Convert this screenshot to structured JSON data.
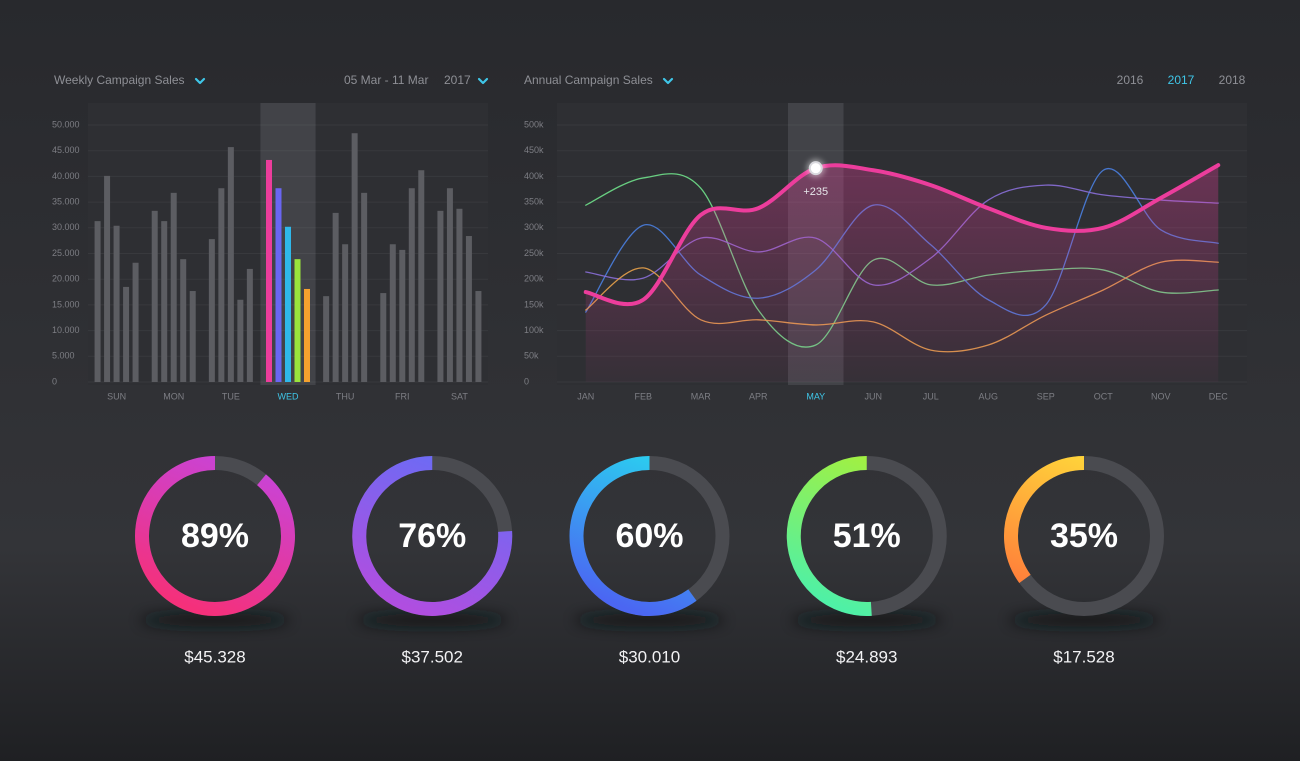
{
  "chart_data": [
    {
      "type": "bar",
      "title": "Weekly Campaign Sales",
      "date_range": "05 Mar - 11 Mar",
      "year": "2017",
      "categories": [
        "SUN",
        "MON",
        "TUE",
        "WED",
        "THU",
        "FRI",
        "SAT"
      ],
      "selected": 3,
      "ylim": [
        0,
        50000
      ],
      "yticks": [
        0,
        {
          "value": 5000,
          "label": "5.000"
        },
        {
          "value": 10000,
          "label": "10.000"
        },
        {
          "value": 15000,
          "label": "15.000"
        },
        {
          "value": 20000,
          "label": "20.000"
        },
        {
          "value": 25000,
          "label": "25.000"
        },
        {
          "value": 30000,
          "label": "30.000"
        },
        {
          "value": 35000,
          "label": "35.000"
        },
        {
          "value": 40000,
          "label": "40.000"
        },
        {
          "value": 45000,
          "label": "45.000"
        },
        {
          "value": 50000,
          "label": "50.000"
        }
      ],
      "grid": true,
      "series": [
        {
          "color": "#5c5d62",
          "highlight_color": "#ec3d9c",
          "values": [
            31300,
            33300,
            27800,
            43200,
            16700,
            17300,
            33300
          ]
        },
        {
          "color": "#5c5d62",
          "highlight_color": "#6a66f2",
          "values": [
            40100,
            31300,
            37700,
            37700,
            32900,
            26800,
            37700
          ]
        },
        {
          "color": "#5c5d62",
          "highlight_color": "#2fb8ea",
          "values": [
            30400,
            36800,
            45700,
            30200,
            26800,
            25700,
            33700
          ]
        },
        {
          "color": "#5c5d62",
          "highlight_color": "#9be43c",
          "values": [
            18500,
            23900,
            16000,
            23900,
            48400,
            37700,
            28400
          ]
        },
        {
          "color": "#5c5d62",
          "highlight_color": "#f5a12e",
          "values": [
            23200,
            17700,
            22000,
            18100,
            36800,
            41200,
            17700
          ]
        }
      ]
    },
    {
      "type": "line",
      "title": "Annual Campaign Sales",
      "years": [
        "2016",
        "2017",
        "2018"
      ],
      "selected_year": 1,
      "categories": [
        "JAN",
        "FEB",
        "MAR",
        "APR",
        "MAY",
        "JUN",
        "JUL",
        "AUG",
        "SEP",
        "OCT",
        "NOV",
        "DEC"
      ],
      "selected": 4,
      "ylim": [
        0,
        500000
      ],
      "yticks": [
        0,
        {
          "value": 50000,
          "label": "50k"
        },
        {
          "value": 100000,
          "label": "100k"
        },
        {
          "value": 150000,
          "label": "150k"
        },
        {
          "value": 200000,
          "label": "200k"
        },
        {
          "value": 250000,
          "label": "250k"
        },
        {
          "value": 300000,
          "label": "300k"
        },
        {
          "value": 350000,
          "label": "350k"
        },
        {
          "value": 400000,
          "label": "400k"
        },
        {
          "value": 450000,
          "label": "450k"
        },
        {
          "value": 500000,
          "label": "500k"
        }
      ],
      "grid": true,
      "annotation": "+235",
      "series": [
        {
          "color": "#ec3d9c",
          "area": true,
          "values": [
            175000,
            160000,
            325000,
            338000,
            416000,
            412000,
            383000,
            338000,
            300000,
            300000,
            358000,
            422000
          ]
        },
        {
          "color": "#6fe08a",
          "values": [
            344000,
            397000,
            377000,
            140000,
            72000,
            237000,
            189000,
            208000,
            218000,
            218000,
            175000,
            179000
          ]
        },
        {
          "color": "#4a7fe0",
          "values": [
            136000,
            305000,
            208000,
            163000,
            218000,
            344000,
            267000,
            160000,
            150000,
            412000,
            296000,
            270000
          ]
        },
        {
          "color": "#8a6fd8",
          "values": [
            214000,
            202000,
            280000,
            253000,
            280000,
            189000,
            241000,
            354000,
            383000,
            364000,
            354000,
            348000
          ]
        },
        {
          "color": "#e8a24a",
          "values": [
            140000,
            222000,
            121000,
            121000,
            111000,
            117000,
            62000,
            72000,
            130000,
            179000,
            233000,
            233000
          ]
        }
      ]
    },
    {
      "type": "gauge",
      "values": [
        89,
        76,
        60,
        51,
        35
      ],
      "value_labels": [
        "89%",
        "76%",
        "60%",
        "51%",
        "35%"
      ],
      "captions": [
        "$45.328",
        "$37.502",
        "$30.010",
        "$24.893",
        "$17.528"
      ],
      "colors": [
        [
          "#c844d8",
          "#f5307a"
        ],
        [
          "#6a6cf5",
          "#b04ee0"
        ],
        [
          "#2ad1f0",
          "#4b66f2"
        ],
        [
          "#a6f03c",
          "#4ff0a6"
        ],
        [
          "#ffd83a",
          "#ff7a3a"
        ]
      ],
      "track_color": "#4a4b50"
    }
  ]
}
